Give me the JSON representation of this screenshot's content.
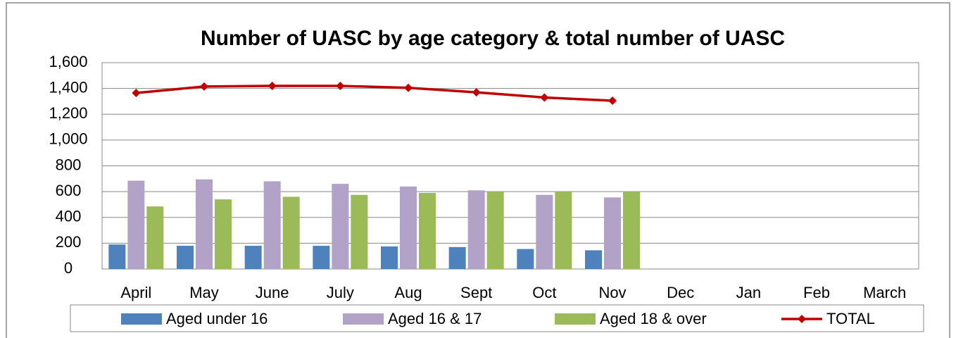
{
  "chart_data": {
    "type": "bar",
    "title": "Number of UASC by age category & total number of UASC",
    "categories": [
      "April",
      "May",
      "June",
      "July",
      "Aug",
      "Sept",
      "Oct",
      "Nov",
      "Dec",
      "Jan",
      "Feb",
      "March"
    ],
    "series": [
      {
        "name": "Aged under 16",
        "type": "bar",
        "color": "#4f81bd",
        "values": [
          190,
          180,
          180,
          180,
          175,
          170,
          155,
          145,
          null,
          null,
          null,
          null
        ]
      },
      {
        "name": "Aged 16 & 17",
        "type": "bar",
        "color": "#b3a2c7",
        "values": [
          685,
          695,
          680,
          660,
          640,
          610,
          575,
          555,
          null,
          null,
          null,
          null
        ]
      },
      {
        "name": "Aged 18 & over",
        "type": "bar",
        "color": "#9bbb59",
        "values": [
          485,
          540,
          560,
          575,
          590,
          600,
          600,
          600,
          null,
          null,
          null,
          null
        ]
      },
      {
        "name": "TOTAL",
        "type": "line",
        "color": "#c00000",
        "values": [
          1365,
          1415,
          1420,
          1420,
          1405,
          1370,
          1330,
          1305,
          null,
          null,
          null,
          null
        ]
      }
    ],
    "ylim": [
      0,
      1600
    ],
    "yticks": [
      0,
      200,
      400,
      600,
      800,
      {
        "value": 1000,
        "label": "1,000"
      },
      {
        "value": 1200,
        "label": "1,200"
      },
      {
        "value": 1400,
        "label": "1,400"
      },
      {
        "value": 1600,
        "label": "1,600"
      }
    ],
    "grid": true,
    "legend": "bottom"
  }
}
